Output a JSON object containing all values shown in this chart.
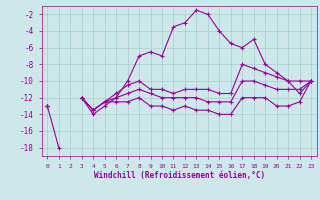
{
  "xlabel": "Windchill (Refroidissement éolien,°C)",
  "bg_color": "#cce8e8",
  "grid_color": "#aacccc",
  "line_color": "#990099",
  "hours": [
    0,
    1,
    2,
    3,
    4,
    5,
    6,
    7,
    8,
    9,
    10,
    11,
    12,
    13,
    14,
    15,
    16,
    17,
    18,
    19,
    20,
    21,
    22,
    23
  ],
  "line_main": [
    -13,
    -18,
    null,
    -12,
    -14,
    -13,
    -12,
    -10,
    -7,
    -6.5,
    -7,
    -3.5,
    -3,
    -1.5,
    -2,
    -4,
    -5.5,
    -6,
    -5,
    -8,
    -9,
    -10,
    -11.5,
    -10
  ],
  "line_a": [
    -13,
    null,
    null,
    -12,
    -13.5,
    -12.5,
    -11.5,
    -10.5,
    -10,
    -11,
    -11,
    -11.5,
    -11,
    -11,
    -11,
    -11.5,
    -11.5,
    -8,
    -8.5,
    -9,
    -9.5,
    -10,
    -10,
    -10
  ],
  "line_b": [
    -13,
    null,
    null,
    -12,
    -13.5,
    -12.5,
    -12,
    -11.5,
    -11,
    -11.5,
    -12,
    -12,
    -12,
    -12,
    -12.5,
    -12.5,
    -12.5,
    -10,
    -10,
    -10.5,
    -11,
    -11,
    -11,
    -10
  ],
  "line_c": [
    -13,
    null,
    null,
    -12,
    -13.5,
    -12.5,
    -12.5,
    -12.5,
    -12,
    -13,
    -13,
    -13.5,
    -13,
    -13.5,
    -13.5,
    -14,
    -14,
    -12,
    -12,
    -12,
    -13,
    -13,
    -12.5,
    -10
  ],
  "ylim": [
    -19,
    -1
  ],
  "xlim": [
    -0.5,
    23.5
  ],
  "yticks": [
    -2,
    -4,
    -6,
    -8,
    -10,
    -12,
    -14,
    -16,
    -18
  ],
  "xtick_labels": [
    "0",
    "1",
    "2",
    "3",
    "4",
    "5",
    "6",
    "7",
    "8",
    "9",
    "10",
    "11",
    "12",
    "13",
    "14",
    "15",
    "16",
    "17",
    "18",
    "19",
    "20",
    "21",
    "22",
    "23"
  ]
}
